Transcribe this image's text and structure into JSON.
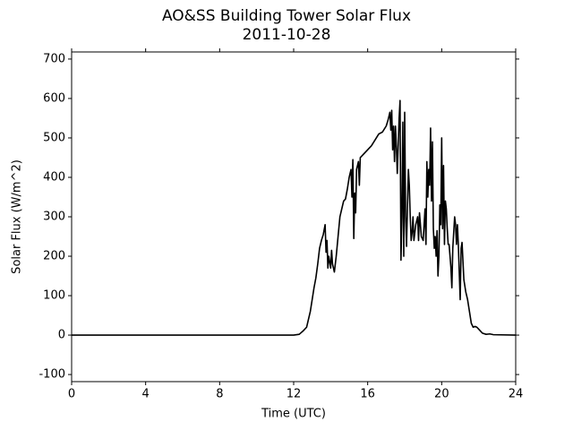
{
  "chart_data": {
    "type": "line",
    "title": "AO&SS Building Tower Solar Flux",
    "subtitle": "2011-10-28",
    "x_label": "Time (UTC)",
    "y_label": "Solar Flux (W/m^2)",
    "xlim": [
      0,
      24
    ],
    "xticks": [
      0,
      4,
      8,
      12,
      16,
      20,
      24
    ],
    "ylim": [
      -118,
      718
    ],
    "yticks": [
      -100,
      0,
      100,
      200,
      300,
      400,
      500,
      600,
      700
    ],
    "series": [
      {
        "color": "#000000",
        "x": [
          0,
          12,
          12.3,
          12.5,
          12.7,
          12.8,
          12.9,
          13.0,
          13.1,
          13.2,
          13.3,
          13.4,
          13.5,
          13.6,
          13.7,
          13.75,
          13.8,
          13.85,
          13.9,
          14.0,
          14.05,
          14.1,
          14.2,
          14.3,
          14.4,
          14.5,
          14.6,
          14.7,
          14.8,
          14.9,
          15.0,
          15.1,
          15.15,
          15.2,
          15.25,
          15.3,
          15.35,
          15.4,
          15.5,
          15.55,
          15.6,
          15.8,
          16.0,
          16.2,
          16.4,
          16.6,
          16.8,
          17.0,
          17.1,
          17.2,
          17.25,
          17.3,
          17.35,
          17.4,
          17.45,
          17.5,
          17.55,
          17.6,
          17.7,
          17.75,
          17.8,
          17.85,
          17.9,
          17.95,
          18.0,
          18.05,
          18.1,
          18.2,
          18.25,
          18.3,
          18.35,
          18.4,
          18.45,
          18.5,
          18.6,
          18.7,
          18.75,
          18.8,
          18.9,
          19.0,
          19.1,
          19.15,
          19.2,
          19.25,
          19.3,
          19.35,
          19.4,
          19.45,
          19.5,
          19.55,
          19.6,
          19.65,
          19.7,
          19.75,
          19.8,
          19.85,
          19.9,
          19.95,
          20.0,
          20.05,
          20.1,
          20.15,
          20.2,
          20.25,
          20.3,
          20.35,
          20.4,
          20.5,
          20.55,
          20.6,
          20.7,
          20.75,
          20.8,
          20.85,
          20.9,
          21.0,
          21.05,
          21.1,
          21.2,
          21.3,
          21.4,
          21.5,
          21.6,
          21.7,
          21.8,
          21.9,
          22.0,
          22.2,
          22.4,
          22.6,
          22.8,
          24
        ],
        "values": [
          0,
          0,
          2,
          10,
          20,
          40,
          60,
          90,
          120,
          145,
          180,
          220,
          240,
          255,
          280,
          210,
          240,
          170,
          200,
          170,
          215,
          180,
          160,
          200,
          250,
          300,
          320,
          340,
          345,
          370,
          400,
          420,
          350,
          445,
          245,
          360,
          310,
          420,
          440,
          380,
          450,
          460,
          470,
          480,
          495,
          510,
          515,
          530,
          545,
          565,
          520,
          570,
          470,
          530,
          440,
          530,
          480,
          410,
          550,
          595,
          190,
          300,
          540,
          200,
          565,
          300,
          225,
          420,
          380,
          300,
          240,
          260,
          300,
          240,
          280,
          300,
          240,
          310,
          250,
          240,
          320,
          230,
          440,
          350,
          420,
          380,
          525,
          340,
          490,
          270,
          220,
          250,
          200,
          265,
          150,
          200,
          330,
          280,
          500,
          270,
          430,
          230,
          340,
          320,
          270,
          230,
          230,
          170,
          120,
          220,
          300,
          280,
          230,
          280,
          230,
          90,
          220,
          235,
          140,
          110,
          90,
          60,
          30,
          20,
          22,
          20,
          15,
          5,
          2,
          3,
          1,
          0
        ]
      }
    ]
  }
}
